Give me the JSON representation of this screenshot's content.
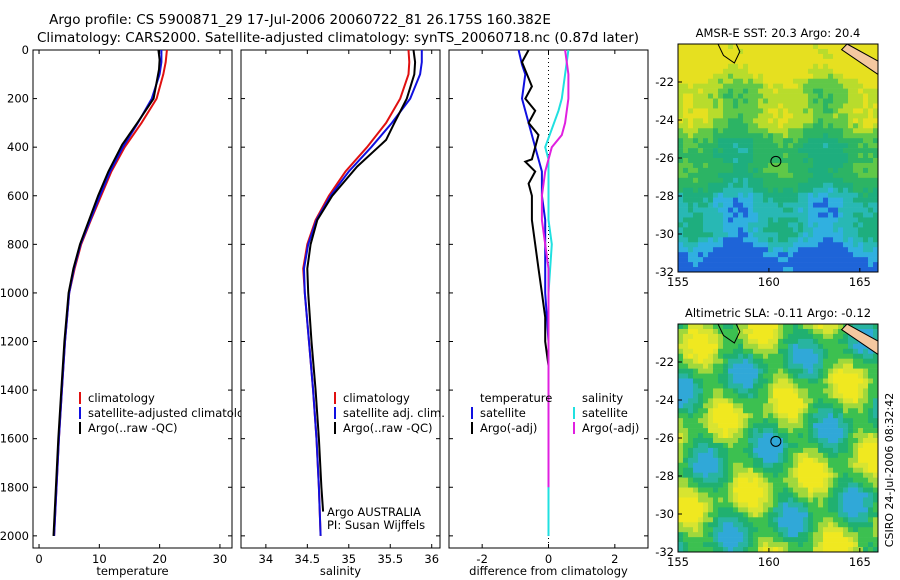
{
  "header": {
    "title_line1": "Argo profile: CS 5900871_29 17-Jul-2006 20060722_81 26.175S 160.382E",
    "title_line2": "Climatology: CARS2000. Satellite-adjusted climatology: synTS_20060718.nc (0.87d later)"
  },
  "colors": {
    "climatology": "#e01010",
    "satellite": "#1010e0",
    "argo": "#000000",
    "cyan": "#20e0e0",
    "magenta": "#e020e0"
  },
  "stamp": "CSIRO 24-Jul-2006 08:32:42",
  "chart_data": [
    {
      "type": "line",
      "xlabel": "temperature",
      "xlim": [
        -1,
        32
      ],
      "ylim": [
        2050,
        0
      ],
      "xticks": [
        0,
        10,
        20,
        30
      ],
      "yticks": [
        0,
        200,
        400,
        600,
        800,
        1000,
        1200,
        1400,
        1600,
        1800,
        2000
      ],
      "legend": {
        "placement": "bottom-right",
        "entries": [
          "climatology",
          "satellite-adjusted climatology",
          "Argo(..raw -QC)"
        ]
      },
      "series": [
        {
          "name": "climatology",
          "color": "#e01010",
          "points": [
            [
              21.2,
              0
            ],
            [
              21.0,
              50
            ],
            [
              20.6,
              100
            ],
            [
              19.5,
              200
            ],
            [
              17.0,
              300
            ],
            [
              14.2,
              400
            ],
            [
              12.0,
              500
            ],
            [
              10.3,
              600
            ],
            [
              8.6,
              700
            ],
            [
              7.0,
              800
            ],
            [
              5.9,
              900
            ],
            [
              5.0,
              1000
            ],
            [
              4.3,
              1200
            ],
            [
              3.8,
              1400
            ],
            [
              3.3,
              1600
            ],
            [
              2.9,
              1800
            ],
            [
              2.5,
              2000
            ]
          ]
        },
        {
          "name": "satellite-adjusted climatology",
          "color": "#1010e0",
          "points": [
            [
              20.3,
              0
            ],
            [
              20.3,
              50
            ],
            [
              20.0,
              100
            ],
            [
              18.7,
              200
            ],
            [
              16.4,
              300
            ],
            [
              13.9,
              400
            ],
            [
              11.8,
              500
            ],
            [
              10.1,
              600
            ],
            [
              8.5,
              700
            ],
            [
              6.9,
              800
            ],
            [
              5.8,
              900
            ],
            [
              5.0,
              1000
            ],
            [
              4.3,
              1200
            ],
            [
              3.8,
              1400
            ],
            [
              3.3,
              1600
            ],
            [
              2.9,
              1800
            ],
            [
              2.5,
              2000
            ]
          ]
        },
        {
          "name": "Argo(..raw -QC)",
          "color": "#000000",
          "points": [
            [
              19.8,
              0
            ],
            [
              20.0,
              40
            ],
            [
              19.9,
              80
            ],
            [
              19.0,
              200
            ],
            [
              16.3,
              300
            ],
            [
              13.8,
              390
            ],
            [
              11.5,
              500
            ],
            [
              9.8,
              600
            ],
            [
              8.3,
              700
            ],
            [
              6.8,
              800
            ],
            [
              5.7,
              900
            ],
            [
              4.9,
              1000
            ],
            [
              4.2,
              1200
            ],
            [
              3.7,
              1400
            ],
            [
              3.2,
              1600
            ],
            [
              2.8,
              1800
            ],
            [
              2.4,
              2000
            ]
          ]
        }
      ]
    },
    {
      "type": "line",
      "xlabel": "salinity",
      "xlim": [
        33.7,
        36.1
      ],
      "ylim": [
        2050,
        0
      ],
      "xticks": [
        34,
        34.5,
        35,
        35.5,
        36
      ],
      "xtick_labels": [
        "34",
        "34.5",
        "35",
        "35.5",
        "36"
      ],
      "legend": {
        "placement": "bottom-right",
        "entries": [
          "climatology",
          "satellite adj. clim.",
          "Argo(..raw -QC)"
        ]
      },
      "annotations": [
        "Argo AUSTRALIA",
        "PI: Susan Wijffels"
      ],
      "series": [
        {
          "name": "climatology",
          "color": "#e01010",
          "points": [
            [
              35.72,
              0
            ],
            [
              35.73,
              50
            ],
            [
              35.72,
              100
            ],
            [
              35.62,
              200
            ],
            [
              35.45,
              300
            ],
            [
              35.22,
              400
            ],
            [
              34.96,
              500
            ],
            [
              34.76,
              600
            ],
            [
              34.6,
              700
            ],
            [
              34.5,
              800
            ],
            [
              34.45,
              900
            ],
            [
              34.47,
              1000
            ],
            [
              34.52,
              1200
            ],
            [
              34.57,
              1400
            ],
            [
              34.61,
              1600
            ],
            [
              34.64,
              1800
            ],
            [
              34.66,
              2000
            ]
          ]
        },
        {
          "name": "satellite adj. clim.",
          "color": "#1010e0",
          "points": [
            [
              35.88,
              0
            ],
            [
              35.88,
              50
            ],
            [
              35.86,
              100
            ],
            [
              35.74,
              200
            ],
            [
              35.52,
              300
            ],
            [
              35.27,
              400
            ],
            [
              35.0,
              500
            ],
            [
              34.78,
              600
            ],
            [
              34.61,
              700
            ],
            [
              34.51,
              800
            ],
            [
              34.46,
              900
            ],
            [
              34.47,
              1000
            ],
            [
              34.52,
              1200
            ],
            [
              34.57,
              1400
            ],
            [
              34.61,
              1600
            ],
            [
              34.64,
              1800
            ],
            [
              34.66,
              2000
            ]
          ]
        },
        {
          "name": "Argo(..raw -QC)",
          "color": "#000000",
          "points": [
            [
              35.78,
              0
            ],
            [
              35.8,
              50
            ],
            [
              35.79,
              100
            ],
            [
              35.7,
              200
            ],
            [
              35.55,
              300
            ],
            [
              35.45,
              370
            ],
            [
              35.1,
              480
            ],
            [
              34.8,
              600
            ],
            [
              34.62,
              700
            ],
            [
              34.54,
              800
            ],
            [
              34.5,
              900
            ],
            [
              34.51,
              1000
            ],
            [
              34.55,
              1200
            ],
            [
              34.6,
              1400
            ],
            [
              34.64,
              1600
            ],
            [
              34.67,
              1800
            ],
            [
              34.69,
              1900
            ]
          ]
        }
      ]
    },
    {
      "type": "line",
      "xlabel": "difference from climatology",
      "xlim": [
        -3,
        3
      ],
      "ylim": [
        2050,
        0
      ],
      "xticks": [
        -2,
        0,
        2
      ],
      "legend": {
        "placement": "bottom",
        "entries": [
          "temperature",
          "satellite",
          "Argo(-adj)",
          "salinity",
          "satellite",
          "Argo(-adj)"
        ]
      },
      "series": [
        {
          "name": "temperature satellite",
          "color": "#1010e0",
          "points": [
            [
              -0.9,
              0
            ],
            [
              -0.8,
              60
            ],
            [
              -0.7,
              100
            ],
            [
              -0.8,
              200
            ],
            [
              -0.6,
              300
            ],
            [
              -0.4,
              400
            ],
            [
              -0.2,
              500
            ],
            [
              -0.2,
              600
            ],
            [
              -0.1,
              700
            ],
            [
              -0.1,
              800
            ],
            [
              -0.1,
              1000
            ],
            [
              0,
              1200
            ],
            [
              0,
              1600
            ],
            [
              0,
              2000
            ]
          ]
        },
        {
          "name": "temperature Argo(-adj)",
          "color": "#000000",
          "points": [
            [
              -0.6,
              0
            ],
            [
              -0.8,
              50
            ],
            [
              -0.5,
              150
            ],
            [
              -0.7,
              200
            ],
            [
              -0.4,
              250
            ],
            [
              -0.6,
              300
            ],
            [
              -0.3,
              350
            ],
            [
              -0.4,
              400
            ],
            [
              -0.5,
              450
            ],
            [
              -0.7,
              460
            ],
            [
              -0.4,
              500
            ],
            [
              -0.6,
              550
            ],
            [
              -0.5,
              600
            ],
            [
              -0.5,
              700
            ],
            [
              -0.4,
              800
            ],
            [
              -0.3,
              900
            ],
            [
              -0.2,
              1000
            ],
            [
              -0.1,
              1100
            ],
            [
              -0.1,
              1200
            ],
            [
              0,
              1300
            ],
            [
              0,
              1500
            ],
            [
              0,
              1700
            ],
            [
              0,
              1800
            ]
          ]
        },
        {
          "name": "salinity satellite",
          "color": "#20e0e0",
          "points": [
            [
              0.6,
              0
            ],
            [
              0.5,
              100
            ],
            [
              0.4,
              200
            ],
            [
              0.3,
              250
            ],
            [
              -0.1,
              400
            ],
            [
              0.0,
              450
            ],
            [
              0.0,
              600
            ],
            [
              0.0,
              700
            ],
            [
              0.1,
              800
            ],
            [
              0.0,
              1000
            ],
            [
              0.0,
              1200
            ],
            [
              0.0,
              1500
            ],
            [
              0.0,
              2000
            ]
          ]
        },
        {
          "name": "salinity Argo(-adj)",
          "color": "#e020e0",
          "points": [
            [
              0.5,
              0
            ],
            [
              0.6,
              100
            ],
            [
              0.6,
              200
            ],
            [
              0.5,
              300
            ],
            [
              0.4,
              350
            ],
            [
              0.1,
              400
            ],
            [
              0.0,
              450
            ],
            [
              -0.1,
              500
            ],
            [
              -0.2,
              600
            ],
            [
              -0.2,
              700
            ],
            [
              -0.1,
              800
            ],
            [
              0.0,
              900
            ],
            [
              0.0,
              1000
            ],
            [
              0.0,
              1300
            ],
            [
              0.0,
              1600
            ],
            [
              0.0,
              1800
            ]
          ]
        }
      ]
    },
    {
      "type": "heatmap",
      "title": "AMSR-E SST: 20.3  Argo: 20.4",
      "xlim": [
        155,
        166
      ],
      "ylim": [
        -32,
        -20
      ],
      "xticks": [
        155,
        160,
        165
      ],
      "yticks": [
        -22,
        -24,
        -26,
        -28,
        -30,
        -32
      ],
      "marker": {
        "lon": 160.382,
        "lat": -26.175
      }
    },
    {
      "type": "heatmap",
      "title": "Altimetric SLA: -0.11  Argo: -0.12",
      "xlim": [
        155,
        166
      ],
      "ylim": [
        -32,
        -20
      ],
      "xticks": [
        155,
        160,
        165
      ],
      "yticks": [
        -22,
        -24,
        -26,
        -28,
        -30,
        -32
      ],
      "marker": {
        "lon": 160.382,
        "lat": -26.175
      }
    }
  ]
}
